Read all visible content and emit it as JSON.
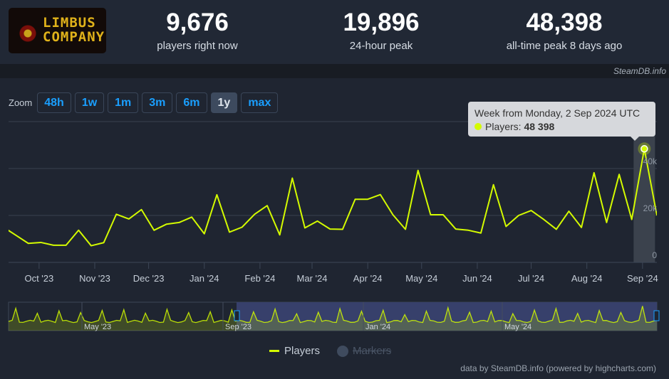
{
  "header": {
    "logo_text": "LIMBUS COMPANY",
    "stats": [
      {
        "value": "9,676",
        "label": "players right now"
      },
      {
        "value": "19,896",
        "label": "24-hour peak"
      },
      {
        "value": "48,398",
        "label": "all-time peak 8 days ago"
      }
    ]
  },
  "band": {
    "source": "SteamDB.info"
  },
  "zoom": {
    "label": "Zoom",
    "buttons": [
      "48h",
      "1w",
      "1m",
      "3m",
      "6m",
      "1y",
      "max"
    ],
    "active": "1y"
  },
  "tooltip": {
    "title": "Week from Monday, 2 Sep 2024 UTC",
    "series": "Players:",
    "value": "48 398"
  },
  "legend": {
    "players": "Players",
    "markers": "Markers"
  },
  "credit": "data by SteamDB.info (powered by highcharts.com)",
  "colors": {
    "series": "#d4fb00",
    "accent": "#1a9fff",
    "navigator_selection": "#37406b"
  },
  "chart_data": {
    "type": "line",
    "series": [
      {
        "name": "Players",
        "pointStart": "2023-09-11",
        "pointInterval": "1 week",
        "values": [
          15100,
          11600,
          8100,
          8500,
          7300,
          7300,
          13700,
          7100,
          8400,
          20500,
          18500,
          22500,
          13700,
          16300,
          17000,
          19300,
          12200,
          28800,
          12900,
          15000,
          20500,
          24200,
          11700,
          35900,
          14700,
          17600,
          14200,
          14100,
          26900,
          26900,
          28900,
          20300,
          14100,
          39200,
          20300,
          20300,
          14200,
          13700,
          12500,
          33100,
          15300,
          20000,
          22100,
          18300,
          14100,
          21800,
          14900,
          38200,
          17000,
          37500,
          18300,
          48398,
          20000
        ]
      }
    ],
    "xlim": [
      "2023-09-14",
      "2024-09-09"
    ],
    "ylim": [
      0,
      60000
    ],
    "y_ticks": [
      "0",
      "20k",
      "40k"
    ],
    "y_tick_values": [
      0,
      20000,
      40000
    ],
    "x_ticks": [
      "Oct '23",
      "Nov '23",
      "Dec '23",
      "Jan '24",
      "Feb '24",
      "Mar '24",
      "Apr '24",
      "May '24",
      "Jun '24",
      "Jul '24",
      "Aug '24",
      "Sep '24"
    ],
    "x_tick_dates": [
      "2023-10-01",
      "2023-11-01",
      "2023-12-01",
      "2024-01-01",
      "2024-02-01",
      "2024-03-01",
      "2024-04-01",
      "2024-05-01",
      "2024-06-01",
      "2024-07-01",
      "2024-08-01",
      "2024-09-01"
    ],
    "highlighted_point": "2024-09-02",
    "grid": true,
    "legend": "bottom",
    "navigator": {
      "labels": [
        "May '23",
        "Sep '23",
        "Jan '24",
        "May '24"
      ],
      "selection": [
        "2023-09-14",
        "2024-09-09"
      ]
    }
  }
}
